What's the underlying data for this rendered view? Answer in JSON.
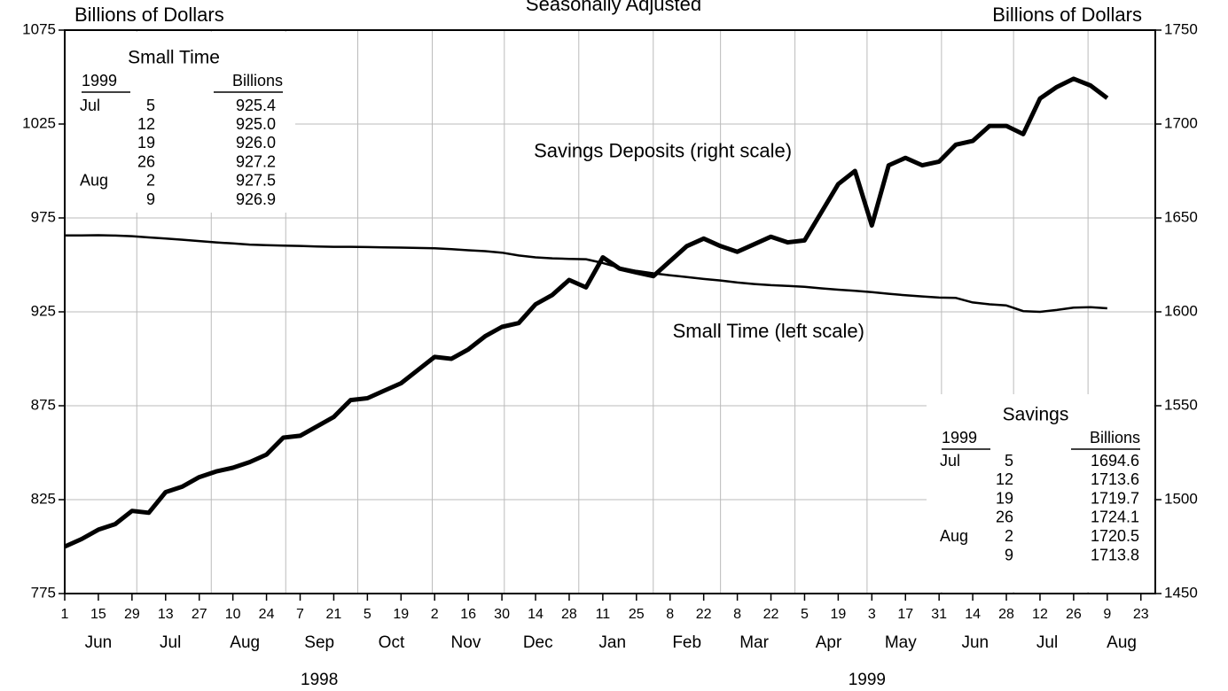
{
  "chart_data": {
    "type": "line",
    "title": "Seasonally Adjusted",
    "y_label": "Billions of Dollars",
    "y2_label": "Billions of Dollars",
    "x": [
      "1998-06-01",
      "1998-06-08",
      "1998-06-15",
      "1998-06-22",
      "1998-06-29",
      "1998-07-06",
      "1998-07-13",
      "1998-07-20",
      "1998-07-27",
      "1998-08-03",
      "1998-08-10",
      "1998-08-17",
      "1998-08-24",
      "1998-08-31",
      "1998-09-07",
      "1998-09-14",
      "1998-09-21",
      "1998-09-28",
      "1998-10-05",
      "1998-10-12",
      "1998-10-19",
      "1998-10-26",
      "1998-11-02",
      "1998-11-09",
      "1998-11-16",
      "1998-11-23",
      "1998-11-30",
      "1998-12-07",
      "1998-12-14",
      "1998-12-21",
      "1998-12-28",
      "1999-01-04",
      "1999-01-11",
      "1999-01-18",
      "1999-01-25",
      "1999-02-01",
      "1999-02-08",
      "1999-02-15",
      "1999-02-22",
      "1999-03-01",
      "1999-03-08",
      "1999-03-15",
      "1999-03-22",
      "1999-03-29",
      "1999-04-05",
      "1999-04-12",
      "1999-04-19",
      "1999-04-26",
      "1999-05-03",
      "1999-05-10",
      "1999-05-17",
      "1999-05-24",
      "1999-05-31",
      "1999-06-07",
      "1999-06-14",
      "1999-06-21",
      "1999-06-28",
      "1999-07-05",
      "1999-07-12",
      "1999-07-19",
      "1999-07-26",
      "1999-08-02",
      "1999-08-09"
    ],
    "series": [
      {
        "color": "#000000",
        "axis": "y",
        "values": [
          965.7,
          965.7,
          965.8,
          965.6,
          965.3,
          964.6,
          964.0,
          963.4,
          962.7,
          962.0,
          961.4,
          960.8,
          960.5,
          960.3,
          960.1,
          959.8,
          959.6,
          959.6,
          959.5,
          959.3,
          959.2,
          959.0,
          958.8,
          958.4,
          957.8,
          957.3,
          956.5,
          955.0,
          954.0,
          953.5,
          953.2,
          953.0,
          951.0,
          948.5,
          946.8,
          945.5,
          944.5,
          943.5,
          942.5,
          941.7,
          940.6,
          939.8,
          939.2,
          938.8,
          938.3,
          937.5,
          936.8,
          936.2,
          935.5,
          934.6,
          933.8,
          933.2,
          932.6,
          932.4,
          930.0,
          929.0,
          928.4,
          925.4,
          925.0,
          926.0,
          927.2,
          927.5,
          926.9
        ]
      },
      {
        "color": "#000000",
        "axis": "y2",
        "values": [
          1475,
          1479,
          1484,
          1487,
          1494,
          1493,
          1504,
          1507,
          1512,
          1515,
          1517,
          1520,
          1524,
          1533,
          1534,
          1539,
          1544,
          1553,
          1554,
          1558,
          1562,
          1569,
          1576,
          1575,
          1580,
          1587,
          1592,
          1594,
          1604,
          1609,
          1617,
          1613,
          1629,
          1623,
          1621,
          1619,
          1627,
          1635,
          1639,
          1635,
          1632,
          1636,
          1640,
          1637,
          1638,
          1653,
          1668,
          1675,
          1646,
          1678,
          1682,
          1678,
          1680,
          1689,
          1691,
          1699,
          1699,
          1694.6,
          1713.6,
          1719.7,
          1724.1,
          1720.5,
          1713.8
        ]
      }
    ],
    "xlim": [
      "1998-06-01",
      "1999-08-29"
    ],
    "xticks": [
      {
        "value": "1998-06-01",
        "label": "1"
      },
      {
        "value": "1998-06-15",
        "label": "15"
      },
      {
        "value": "1998-06-29",
        "label": "29"
      },
      {
        "value": "1998-07-13",
        "label": "13"
      },
      {
        "value": "1998-07-27",
        "label": "27"
      },
      {
        "value": "1998-08-10",
        "label": "10"
      },
      {
        "value": "1998-08-24",
        "label": "24"
      },
      {
        "value": "1998-09-07",
        "label": "7"
      },
      {
        "value": "1998-09-21",
        "label": "21"
      },
      {
        "value": "1998-10-05",
        "label": "5"
      },
      {
        "value": "1998-10-19",
        "label": "19"
      },
      {
        "value": "1998-11-02",
        "label": "2"
      },
      {
        "value": "1998-11-16",
        "label": "16"
      },
      {
        "value": "1998-11-30",
        "label": "30"
      },
      {
        "value": "1998-12-14",
        "label": "14"
      },
      {
        "value": "1998-12-28",
        "label": "28"
      },
      {
        "value": "1999-01-11",
        "label": "11"
      },
      {
        "value": "1999-01-25",
        "label": "25"
      },
      {
        "value": "1999-02-08",
        "label": "8"
      },
      {
        "value": "1999-02-22",
        "label": "22"
      },
      {
        "value": "1999-03-08",
        "label": "8"
      },
      {
        "value": "1999-03-22",
        "label": "22"
      },
      {
        "value": "1999-04-05",
        "label": "5"
      },
      {
        "value": "1999-04-19",
        "label": "19"
      },
      {
        "value": "1999-05-03",
        "label": "3"
      },
      {
        "value": "1999-05-17",
        "label": "17"
      },
      {
        "value": "1999-05-31",
        "label": "31"
      },
      {
        "value": "1999-06-14",
        "label": "14"
      },
      {
        "value": "1999-06-28",
        "label": "28"
      },
      {
        "value": "1999-07-12",
        "label": "12"
      },
      {
        "value": "1999-07-26",
        "label": "26"
      },
      {
        "value": "1999-08-09",
        "label": "9"
      },
      {
        "value": "1999-08-23",
        "label": "23"
      }
    ],
    "x_month_labels": [
      {
        "value": "1998-06-15",
        "label": "Jun"
      },
      {
        "value": "1998-07-15",
        "label": "Jul"
      },
      {
        "value": "1998-08-15",
        "label": "Aug"
      },
      {
        "value": "1998-09-15",
        "label": "Sep"
      },
      {
        "value": "1998-10-15",
        "label": "Oct"
      },
      {
        "value": "1998-11-15",
        "label": "Nov"
      },
      {
        "value": "1998-12-15",
        "label": "Dec"
      },
      {
        "value": "1999-01-15",
        "label": "Jan"
      },
      {
        "value": "1999-02-15",
        "label": "Feb"
      },
      {
        "value": "1999-03-15",
        "label": "Mar"
      },
      {
        "value": "1999-04-15",
        "label": "Apr"
      },
      {
        "value": "1999-05-15",
        "label": "May"
      },
      {
        "value": "1999-06-15",
        "label": "Jun"
      },
      {
        "value": "1999-07-15",
        "label": "Jul"
      },
      {
        "value": "1999-08-15",
        "label": "Aug"
      }
    ],
    "x_year_labels": [
      {
        "value": "1998-09-15",
        "label": "1998"
      },
      {
        "value": "1999-05-01",
        "label": "1999"
      }
    ],
    "xgrid": [
      "1998-07-01",
      "1998-08-01",
      "1998-09-01",
      "1998-10-01",
      "1998-11-01",
      "1998-12-01",
      "1999-01-01",
      "1999-02-01",
      "1999-03-01",
      "1999-04-01",
      "1999-05-01",
      "1999-06-01",
      "1999-07-01",
      "1999-08-01"
    ],
    "ylim": [
      775,
      1075
    ],
    "yticks": [
      775,
      825,
      875,
      925,
      975,
      1025,
      1075
    ],
    "y2lim": [
      1450,
      1750
    ],
    "y2ticks": [
      1450,
      1500,
      1550,
      1600,
      1650,
      1700,
      1750
    ],
    "grid": true,
    "annotations": [
      {
        "text": "Savings Deposits (right scale)",
        "x": "1999-02-05",
        "y2": 1685
      },
      {
        "text": "Small Time (left scale)",
        "x": "1999-03-21",
        "y": 914
      }
    ],
    "insets": [
      {
        "title": "Small Time",
        "header": [
          "1999",
          "Billions"
        ],
        "rows": [
          [
            "Jul",
            "5",
            "925.4"
          ],
          [
            "",
            "12",
            "925.0"
          ],
          [
            "",
            "19",
            "926.0"
          ],
          [
            "",
            "26",
            "927.2"
          ],
          [
            "Aug",
            "2",
            "927.5"
          ],
          [
            "",
            "9",
            "926.9"
          ]
        ]
      },
      {
        "title": "Savings",
        "header": [
          "1999",
          "Billions"
        ],
        "rows": [
          [
            "Jul",
            "5",
            "1694.6"
          ],
          [
            "",
            "12",
            "1713.6"
          ],
          [
            "",
            "19",
            "1719.7"
          ],
          [
            "",
            "26",
            "1724.1"
          ],
          [
            "Aug",
            "2",
            "1720.5"
          ],
          [
            "",
            "9",
            "1713.8"
          ]
        ]
      }
    ]
  }
}
